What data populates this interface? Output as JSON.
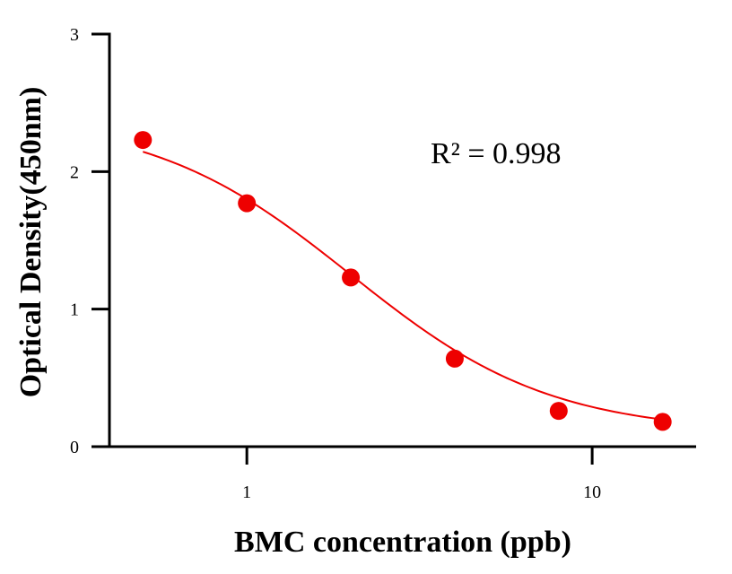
{
  "chart_data": {
    "type": "scatter",
    "xscale": "log",
    "xlabel": "BMC concentration (ppb)",
    "ylabel": "Optical Density(450nm)",
    "xlim": [
      0.4,
      20
    ],
    "ylim": [
      0,
      3
    ],
    "x_ticks": [
      1,
      10
    ],
    "x_tick_labels": [
      "1",
      "10"
    ],
    "y_ticks": [
      0,
      1,
      2,
      3
    ],
    "y_tick_labels": [
      "0",
      "1",
      "2",
      "3"
    ],
    "grid": false,
    "series": [
      {
        "points": [
          {
            "x": 0.5,
            "y": 2.23
          },
          {
            "x": 1,
            "y": 1.77
          },
          {
            "x": 2,
            "y": 1.23
          },
          {
            "x": 4,
            "y": 0.64
          },
          {
            "x": 8,
            "y": 0.26
          },
          {
            "x": 16,
            "y": 0.18
          }
        ],
        "fit": {
          "model": "4PL",
          "top": 2.4,
          "bottom": 0.1,
          "ec50": 2.0,
          "hill": 1.5,
          "x_range": [
            0.5,
            16
          ]
        }
      }
    ],
    "annotation": "R² = 0.998",
    "colors": {
      "series": "#ee0000",
      "axis": "#000000"
    }
  }
}
